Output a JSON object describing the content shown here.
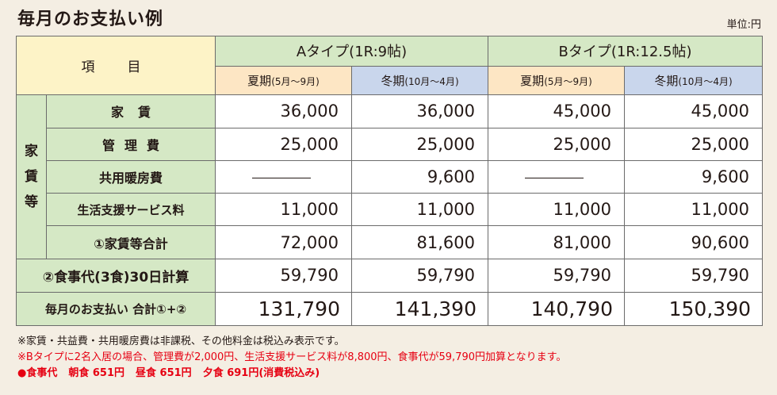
{
  "title": "毎月のお支払い例",
  "unit": "単位:円",
  "header": {
    "item": "項　目",
    "type_a": "Aタイプ(1R:9帖)",
    "type_b": "Bタイプ(1R:12.5帖)",
    "summer": "夏期",
    "summer_period": "(5月〜9月)",
    "winter": "冬期",
    "winter_period": "(10月〜4月)"
  },
  "rent_group_label": "家賃等",
  "rows": [
    {
      "label": "家賃",
      "values": [
        "36,000",
        "36,000",
        "45,000",
        "45,000"
      ]
    },
    {
      "label": "管理費",
      "values": [
        "25,000",
        "25,000",
        "25,000",
        "25,000"
      ]
    },
    {
      "label": "共用暖房費",
      "values": [
        "",
        "9,600",
        "",
        "9,600"
      ]
    },
    {
      "label": "生活支援サービス料",
      "values": [
        "11,000",
        "11,000",
        "11,000",
        "11,000"
      ]
    },
    {
      "label": "①家賃等合計",
      "values": [
        "72,000",
        "81,600",
        "81,000",
        "90,600"
      ]
    }
  ],
  "meal_row": {
    "label": "②食事代(3食)30日計算",
    "values": [
      "59,790",
      "59,790",
      "59,790",
      "59,790"
    ]
  },
  "total_row": {
    "label": "毎月のお支払い 合計①+②",
    "values": [
      "131,790",
      "141,390",
      "140,790",
      "150,390"
    ]
  },
  "notes": {
    "line1": "※家賃・共益費・共用暖房費は非課税、その他料金は税込み表示です。",
    "line2": "※Bタイプに2名入居の場合、管理費が2,000円、生活支援サービス料が8,800円、食事代が59,790円加算となります。",
    "meal_prefix": "●食事代",
    "breakfast": "朝食 651円",
    "lunch": "昼食 651円",
    "dinner": "夕食 691円(消費税込み)"
  }
}
